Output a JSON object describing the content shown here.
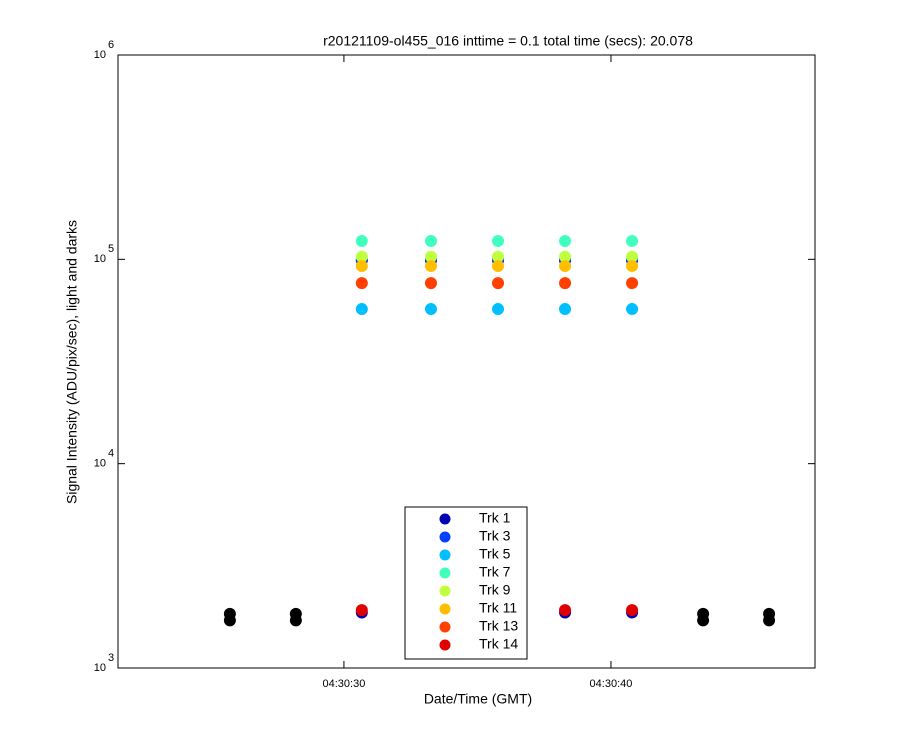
{
  "chart_data": {
    "type": "scatter",
    "title": "r20121109-ol455_016 inttime = 0.1 total time (secs): 20.078",
    "xlabel": "Date/Time (GMT)",
    "ylabel": "Signal Intensity (ADU/pix/sec), light and darks",
    "xlim": [
      21.54,
      47.64
    ],
    "xticks": [
      {
        "value": 30,
        "label": "04:30:30"
      },
      {
        "value": 40,
        "label": "04:30:40"
      }
    ],
    "ylim": [
      1000,
      1000000
    ],
    "log_y": true,
    "yticks": [
      {
        "value": 1000,
        "label": "10",
        "exponent": "3"
      },
      {
        "value": 10000,
        "label": "10",
        "exponent": "4"
      },
      {
        "value": 100000,
        "label": "10",
        "exponent": "5"
      },
      {
        "value": 1000000,
        "label": "10",
        "exponent": "6"
      }
    ],
    "legend": "lower center",
    "series": [
      {
        "color": "#000000",
        "x": [
          25.73,
          25.73,
          28.2,
          28.2,
          43.45,
          43.45,
          45.92,
          45.92
        ],
        "values": [
          1840,
          1710,
          1840,
          1710,
          1840,
          1710,
          1840,
          1710
        ]
      },
      {
        "name": "Trk 1",
        "color": "#0000b0",
        "x": [
          30.67,
          33.26,
          35.77,
          38.28,
          40.79,
          30.67,
          38.28,
          40.79
        ],
        "values": [
          99000,
          99000,
          99000,
          99000,
          99000,
          1870,
          1870,
          1870
        ]
      },
      {
        "name": "Trk 3",
        "color": "#0040ff",
        "x": [
          30.67,
          33.26,
          35.77,
          38.28,
          40.79
        ],
        "values": [
          99000,
          99000,
          99000,
          99000,
          99000
        ]
      },
      {
        "name": "Trk 5",
        "color": "#00bfff",
        "x": [
          30.67,
          33.26,
          35.77,
          38.28,
          40.79
        ],
        "values": [
          57100,
          57100,
          57100,
          57100,
          57100
        ]
      },
      {
        "name": "Trk 7",
        "color": "#40ffbf",
        "x": [
          30.67,
          33.26,
          35.77,
          38.28,
          40.79
        ],
        "values": [
          123000,
          123000,
          123000,
          123000,
          123000
        ]
      },
      {
        "name": "Trk 9",
        "color": "#bfff40",
        "x": [
          30.67,
          33.26,
          35.77,
          38.28,
          40.79
        ],
        "values": [
          103000,
          103000,
          103000,
          103000,
          103000
        ]
      },
      {
        "name": "Trk 11",
        "color": "#ffbf00",
        "x": [
          30.67,
          33.26,
          35.77,
          38.28,
          40.79
        ],
        "values": [
          92700,
          92700,
          92700,
          92700,
          92700
        ]
      },
      {
        "name": "Trk 13",
        "color": "#ff4000",
        "x": [
          30.67,
          33.26,
          35.77,
          38.28,
          40.79
        ],
        "values": [
          76500,
          76500,
          76500,
          76500,
          76500
        ]
      },
      {
        "name": "Trk 14",
        "color": "#e00000",
        "x": [
          30.67,
          38.28,
          40.79
        ],
        "values": [
          1920,
          1920,
          1920
        ]
      }
    ]
  }
}
